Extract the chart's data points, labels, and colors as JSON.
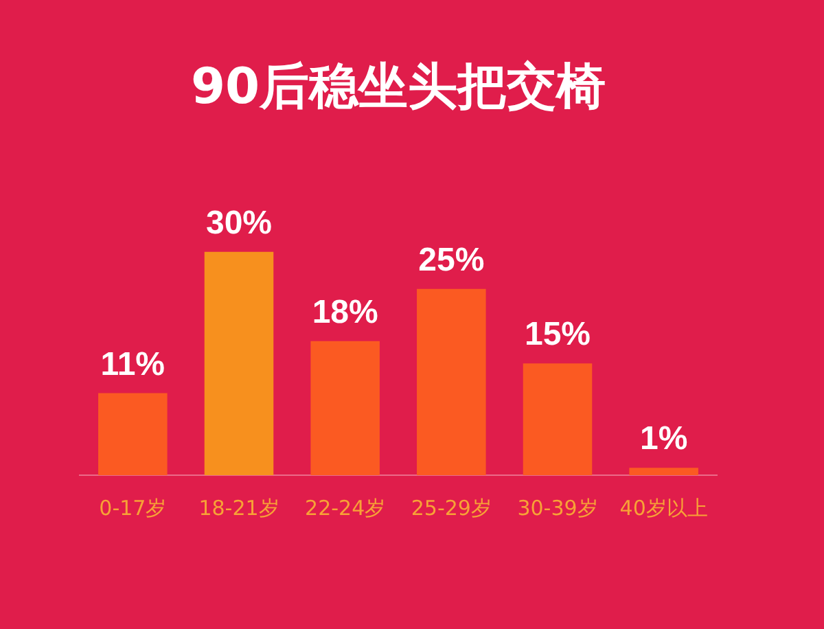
{
  "chart_data": {
    "type": "bar",
    "title": "90后稳坐头把交椅",
    "categories": [
      "0-17岁",
      "18-21岁",
      "22-24岁",
      "25-29岁",
      "30-39岁",
      "40岁以上"
    ],
    "values": [
      11,
      30,
      18,
      25,
      15,
      1
    ],
    "colors": [
      "#fb5a22",
      "#f7901e",
      "#fb5a22",
      "#fb5a22",
      "#fb5a22",
      "#fb5a22"
    ],
    "value_labels": [
      "11%",
      "30%",
      "18%",
      "25%",
      "15%",
      "1%"
    ],
    "grid": false,
    "legend": false
  }
}
